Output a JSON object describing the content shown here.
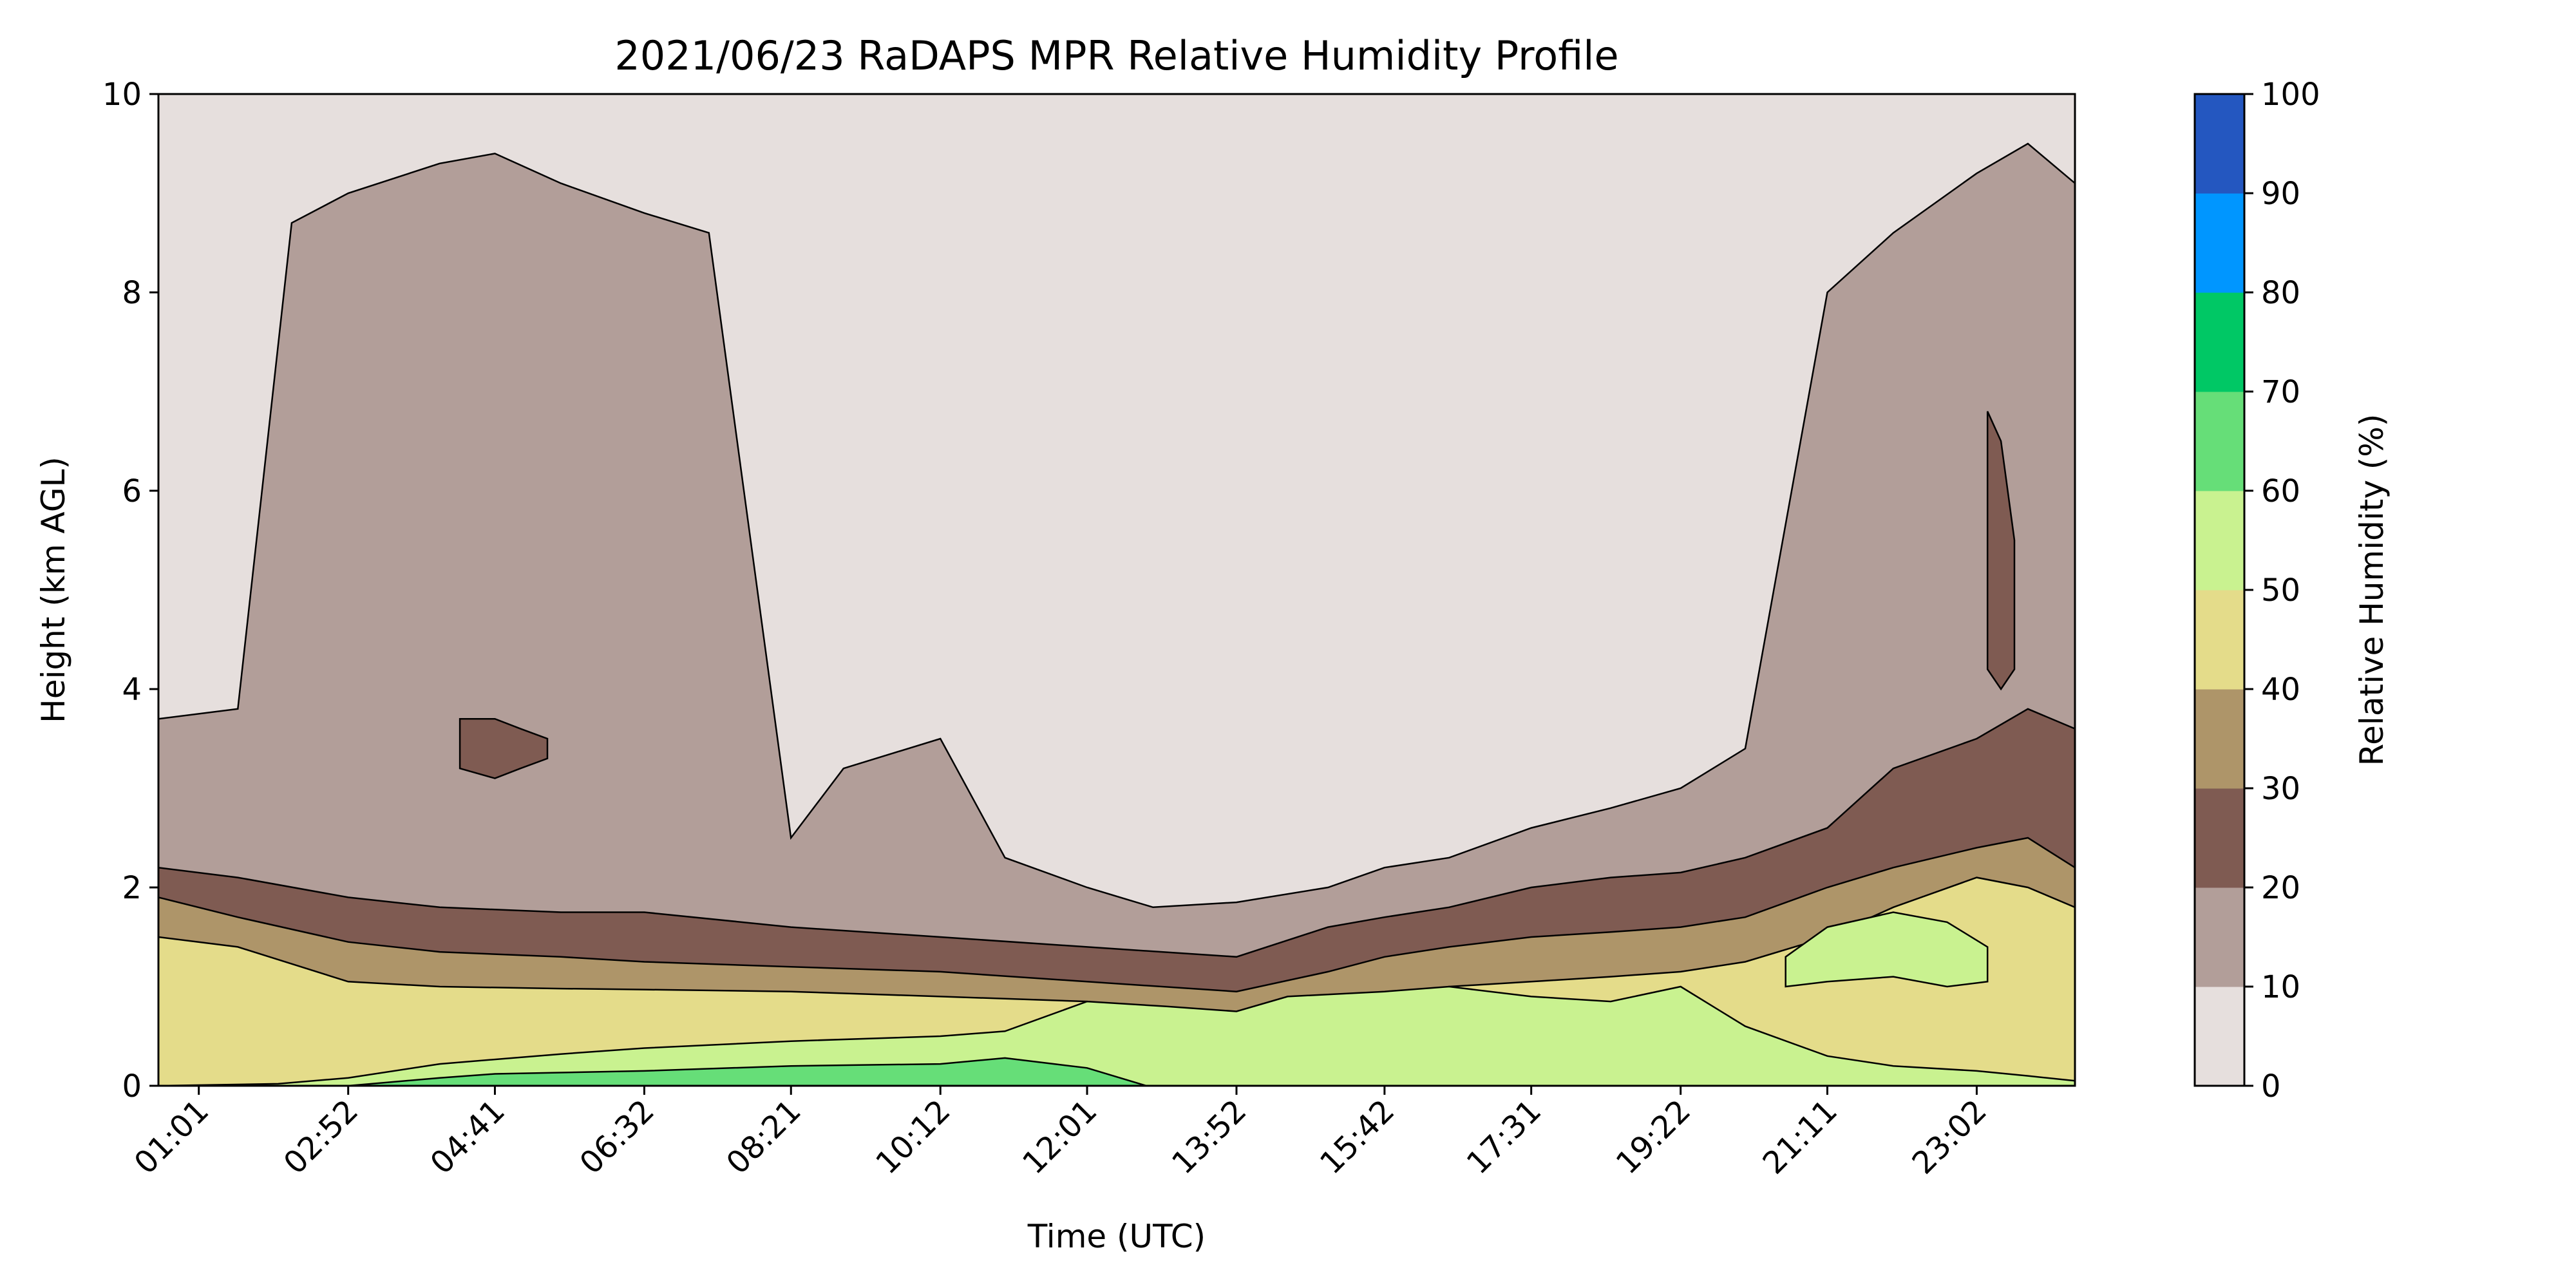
{
  "chart_data": {
    "type": "heatmap",
    "subtype": "filled-contour",
    "title": "2021/06/23 RaDAPS MPR Relative Humidity Profile",
    "xlabel": "Time (UTC)",
    "ylabel": "Height (km AGL)",
    "colorbar_label": "Relative Humidity (%)",
    "xlim": [
      "00:31",
      "24:15"
    ],
    "ylim": [
      0,
      10
    ],
    "x_ticks": [
      "01:01",
      "02:52",
      "04:41",
      "06:32",
      "08:21",
      "10:12",
      "12:01",
      "13:52",
      "15:42",
      "17:31",
      "19:22",
      "21:11",
      "23:02"
    ],
    "y_ticks": [
      "0",
      "2",
      "4",
      "6",
      "8",
      "10"
    ],
    "levels": [
      0,
      10,
      20,
      30,
      40,
      50,
      60,
      70,
      80,
      90,
      100
    ],
    "level_labels": [
      "0",
      "10",
      "20",
      "30",
      "40",
      "50",
      "60",
      "70",
      "80",
      "90",
      "100"
    ],
    "level_colors": [
      "#e6dfdd",
      "#b29e99",
      "#7f5b52",
      "#ae9569",
      "#e4dc8a",
      "#c9f290",
      "#66de78",
      "#00c865",
      "#0096ff",
      "#2457c0"
    ],
    "grid": false,
    "legend": "colorbar-right",
    "contour_bands": [
      {
        "range": "10-20",
        "x": [
          "00:31",
          "01:30",
          "02:10",
          "02:52",
          "04:00",
          "04:41",
          "05:30",
          "06:32",
          "07:20",
          "08:21",
          "09:00",
          "10:12",
          "11:00",
          "12:01",
          "12:50",
          "13:52",
          "15:00",
          "15:42",
          "16:30",
          "17:31",
          "18:30",
          "19:22",
          "20:10",
          "21:11",
          "22:00",
          "23:02",
          "23:40",
          "24:15"
        ],
        "top": [
          3.7,
          3.8,
          8.7,
          9.0,
          9.3,
          9.4,
          9.1,
          8.8,
          8.6,
          2.5,
          3.2,
          3.5,
          2.3,
          2.0,
          1.8,
          1.85,
          2.0,
          2.2,
          2.3,
          2.6,
          2.8,
          3.0,
          3.4,
          8.0,
          8.6,
          9.2,
          9.5,
          9.1
        ]
      },
      {
        "range": "20-30",
        "x": [
          "00:31",
          "01:30",
          "02:52",
          "04:00",
          "05:30",
          "06:32",
          "08:21",
          "10:12",
          "12:01",
          "13:52",
          "15:00",
          "15:42",
          "16:30",
          "17:31",
          "18:30",
          "19:22",
          "20:10",
          "21:11",
          "22:00",
          "23:02",
          "23:40",
          "24:15"
        ],
        "top": [
          2.2,
          2.1,
          1.9,
          1.8,
          1.75,
          1.75,
          1.6,
          1.5,
          1.4,
          1.3,
          1.6,
          1.7,
          1.8,
          2.0,
          2.1,
          2.15,
          2.3,
          2.6,
          3.2,
          3.5,
          3.8,
          3.6
        ]
      },
      {
        "range": "30-40",
        "x": [
          "00:31",
          "01:30",
          "02:52",
          "04:00",
          "05:30",
          "06:32",
          "08:21",
          "10:12",
          "12:01",
          "13:52",
          "15:00",
          "15:42",
          "16:30",
          "17:31",
          "18:30",
          "19:22",
          "20:10",
          "21:11",
          "22:00",
          "23:02",
          "23:40",
          "24:15"
        ],
        "top": [
          1.9,
          1.7,
          1.45,
          1.35,
          1.3,
          1.25,
          1.2,
          1.15,
          1.05,
          0.95,
          1.15,
          1.3,
          1.4,
          1.5,
          1.55,
          1.6,
          1.7,
          2.0,
          2.2,
          2.4,
          2.5,
          2.2
        ]
      },
      {
        "range": "40-50",
        "x": [
          "00:31",
          "01:30",
          "02:52",
          "04:00",
          "05:30",
          "06:32",
          "08:21",
          "10:12",
          "12:01",
          "13:52",
          "15:00",
          "15:42",
          "16:30",
          "17:31",
          "18:30",
          "19:22",
          "20:10",
          "21:11",
          "22:00",
          "23:02",
          "23:40",
          "24:15"
        ],
        "top": [
          1.5,
          1.4,
          1.05,
          1.0,
          0.98,
          0.97,
          0.95,
          0.9,
          0.85,
          0.7,
          0.8,
          0.9,
          1.0,
          1.05,
          1.1,
          1.15,
          1.25,
          1.5,
          1.8,
          2.1,
          2.0,
          1.8
        ]
      },
      {
        "range": "50-60",
        "x": [
          "00:31",
          "02:00",
          "02:52",
          "04:00",
          "05:30",
          "06:32",
          "08:21",
          "10:12",
          "11:00",
          "12:01",
          "13:00",
          "13:52",
          "14:30",
          "15:42",
          "16:30",
          "17:31",
          "18:30",
          "19:22",
          "20:10",
          "21:11",
          "22:00",
          "23:02",
          "23:40",
          "24:15"
        ],
        "top": [
          0,
          0.02,
          0.08,
          0.22,
          0.32,
          0.38,
          0.45,
          0.5,
          0.55,
          0.85,
          0.8,
          0.75,
          0.9,
          0.95,
          1.0,
          0.9,
          0.85,
          1.0,
          0.6,
          0.3,
          0.2,
          0.15,
          0.1,
          0.05
        ]
      },
      {
        "range": "60-70",
        "x": [
          "02:52",
          "04:00",
          "04:41",
          "06:32",
          "08:21",
          "10:12",
          "11:00",
          "12:01",
          "12:45"
        ],
        "top": [
          0,
          0.08,
          0.12,
          0.15,
          0.2,
          0.22,
          0.28,
          0.18,
          0
        ]
      },
      {
        "range": "20-30",
        "note": "upper moist patch",
        "x": [
          "04:15",
          "04:41",
          "05:00",
          "05:20"
        ],
        "top": [
          3.7,
          3.7,
          3.6,
          3.5
        ],
        "bottom": [
          3.2,
          3.1,
          3.2,
          3.3
        ]
      },
      {
        "range": "50-60",
        "note": "evening moist patch",
        "x": [
          "20:40",
          "21:11",
          "22:00",
          "22:40",
          "23:10"
        ],
        "top": [
          1.3,
          1.6,
          1.75,
          1.65,
          1.4
        ],
        "bottom": [
          1.0,
          1.05,
          1.1,
          1.0,
          1.05
        ]
      },
      {
        "range": "20-30",
        "note": "late-evening mid-level column",
        "x": [
          "23:10",
          "23:20",
          "23:30"
        ],
        "top": [
          6.8,
          6.5,
          5.5
        ],
        "bottom": [
          4.2,
          4.0,
          4.2
        ]
      }
    ]
  }
}
